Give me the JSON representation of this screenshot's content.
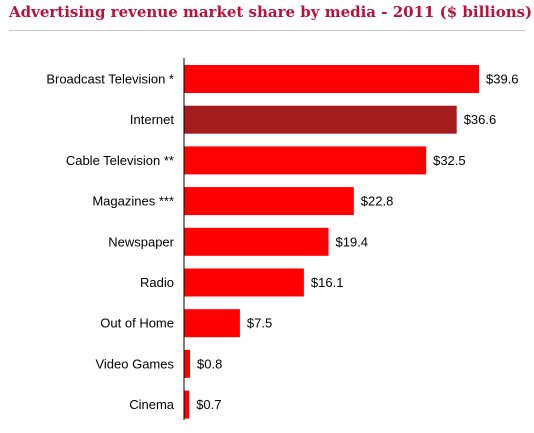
{
  "title": "Advertising revenue market share by media - 2011 ($ billions)",
  "colors": {
    "title": "#b8123a",
    "bar": "#ff0000",
    "highlight_bar": "#a51c1c",
    "axis": "#000000"
  },
  "chart_data": {
    "type": "bar",
    "orientation": "horizontal",
    "title": "Advertising revenue market share by media - 2011 ($ billions)",
    "xlabel": "",
    "ylabel": "",
    "xlim": [
      0,
      39.6
    ],
    "grid": false,
    "legend": "none",
    "value_prefix": "$",
    "categories": [
      "Broadcast Television *",
      "Internet",
      "Cable Television **",
      "Magazines ***",
      "Newspaper",
      "Radio",
      "Out of Home",
      "Video Games",
      "Cinema"
    ],
    "values": [
      39.6,
      36.6,
      32.5,
      22.8,
      19.4,
      16.1,
      7.5,
      0.8,
      0.7
    ],
    "value_labels": [
      "$39.6",
      "$36.6",
      "$32.5",
      "$22.8",
      "$19.4",
      "$16.1",
      "$7.5",
      "$0.8",
      "$0.7"
    ],
    "highlighted": [
      "Internet"
    ]
  }
}
